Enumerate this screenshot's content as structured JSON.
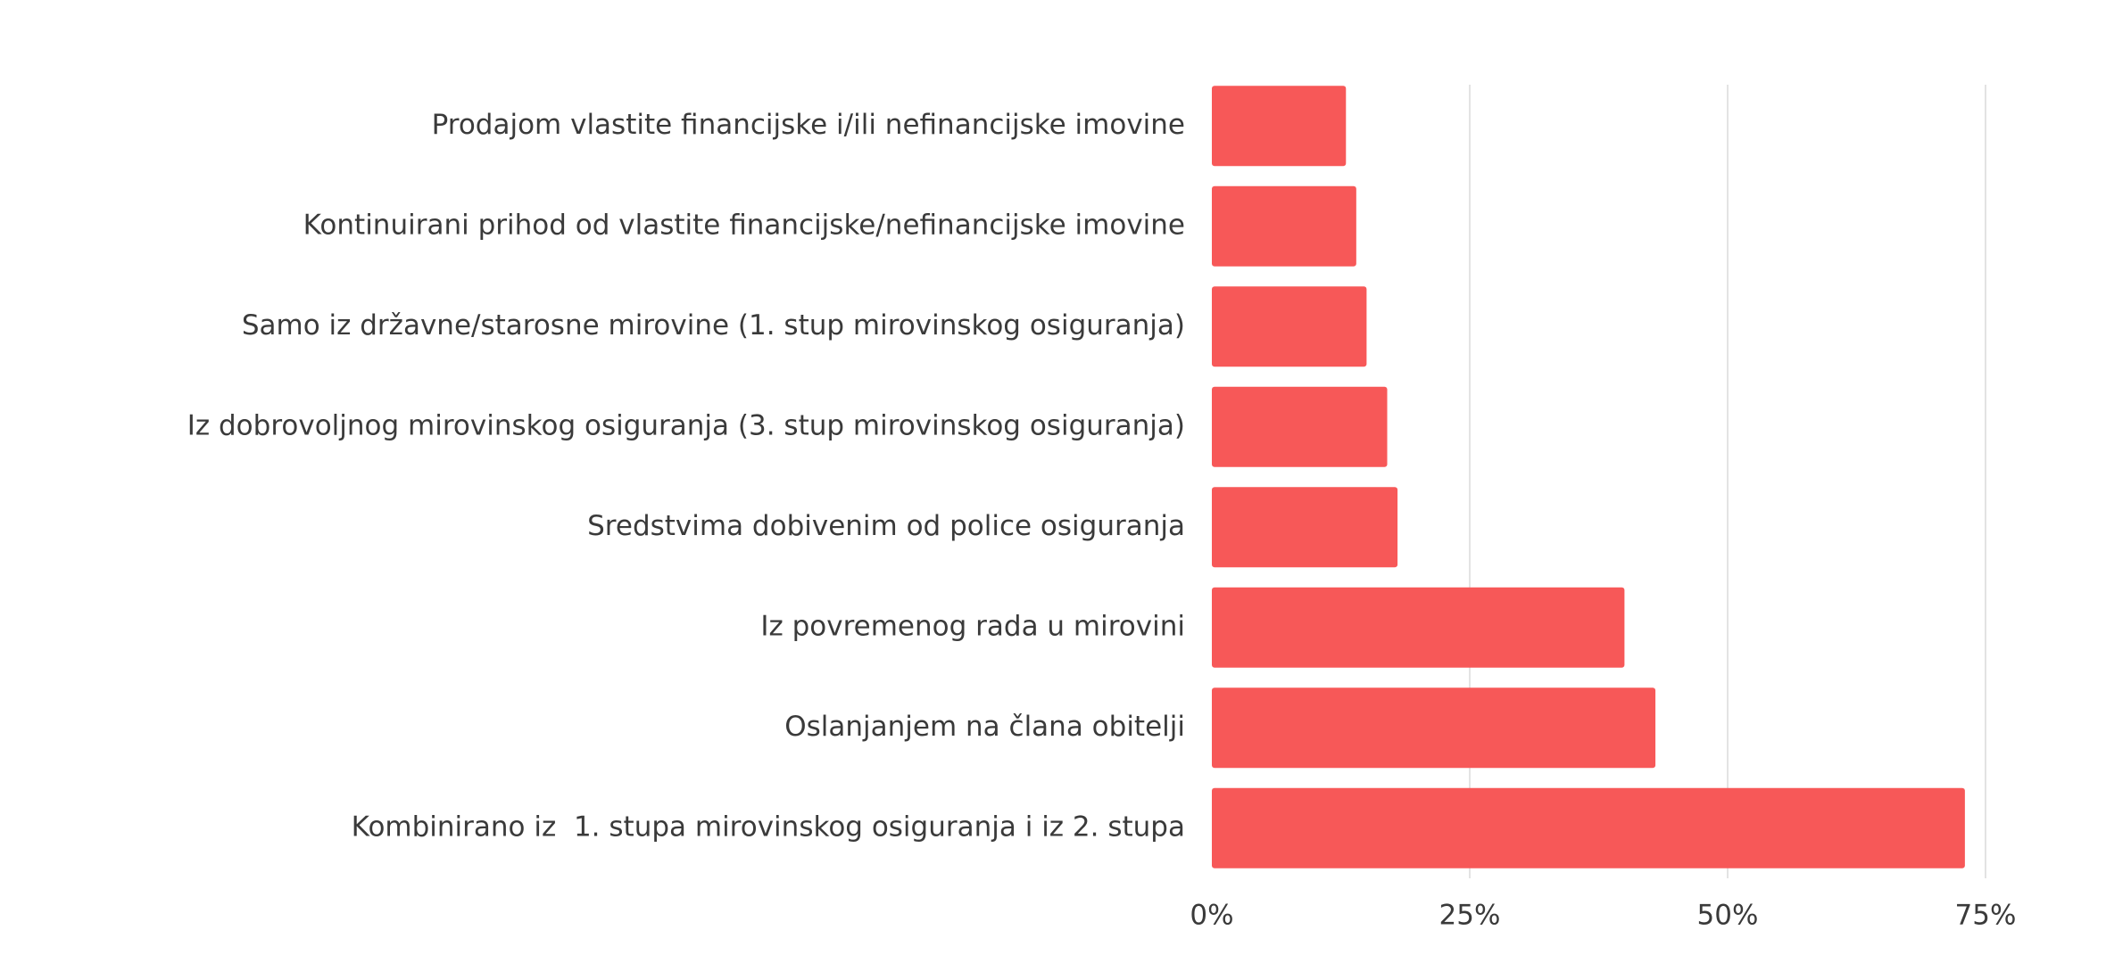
{
  "chart_data": {
    "type": "bar",
    "orientation": "horizontal",
    "categories": [
      "Prodajom vlastite financijske i/ili nefinancijske imovine",
      "Kontinuirani prihod od vlastite financijske/nefinancijske imovine",
      "Samo iz državne/starosne mirovine (1. stup mirovinskog osiguranja)",
      "Iz dobrovoljnog mirovinskog osiguranja (3. stup mirovinskog osiguranja)",
      "Sredstvima dobivenim od police osiguranja",
      "Iz povremenog rada u mirovini",
      "Oslanjanjem na člana obitelji",
      "Kombinirano iz  1. stupa mirovinskog osiguranja i iz 2. stupa"
    ],
    "values": [
      13,
      14,
      15,
      17,
      18,
      40,
      43,
      73
    ],
    "unit": "%",
    "xlim": [
      0,
      75
    ],
    "x_ticks": [
      0,
      25,
      50,
      75
    ],
    "x_tick_labels": [
      "0%",
      "25%",
      "50%",
      "75%"
    ],
    "grid": true,
    "title": "",
    "xlabel": "",
    "ylabel": "",
    "bar_color": "#f75858",
    "grid_color": "#e3e3e3",
    "text_color": "#3a3a3a"
  }
}
